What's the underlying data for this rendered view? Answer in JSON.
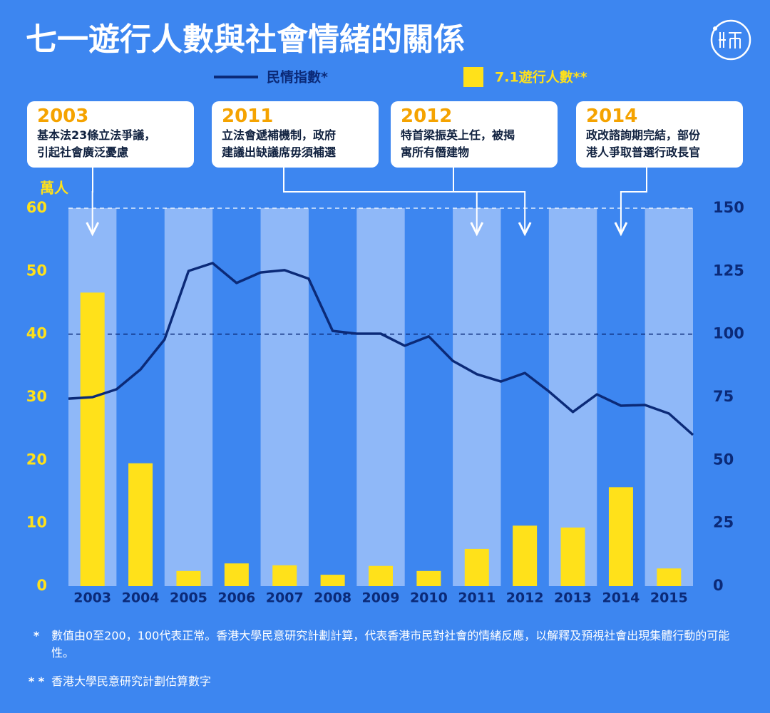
{
  "chart_data": {
    "type": "combo",
    "title": "七一遊行人數與社會情緒的關係",
    "y_label": "萬人",
    "categories": [
      "2003",
      "2004",
      "2005",
      "2006",
      "2007",
      "2008",
      "2009",
      "2010",
      "2011",
      "2012",
      "2013",
      "2014",
      "2015"
    ],
    "series": [
      {
        "name": "民情指數*",
        "type": "line",
        "axis": "y2",
        "color": "#0b2a78",
        "x": [
          2002.5,
          2003,
          2003.5,
          2004,
          2004.5,
          2005,
          2005.5,
          2006,
          2006.5,
          2007,
          2007.5,
          2008,
          2008.5,
          2009,
          2009.5,
          2010,
          2010.5,
          2011,
          2011.5,
          2012,
          2012.5,
          2013,
          2013.5,
          2014,
          2014.5,
          2015,
          2015.5
        ],
        "values": [
          74.4,
          75.0,
          78.1,
          86.0,
          97.9,
          125.1,
          128.2,
          120.3,
          124.5,
          125.4,
          122.0,
          101.3,
          100.2,
          100.2,
          95.4,
          99.1,
          89.4,
          84.1,
          81.2,
          84.6,
          77.3,
          69.1,
          76.1,
          71.6,
          71.9,
          68.5,
          60.0
        ]
      },
      {
        "name": "7.1遊行人數**",
        "type": "bar",
        "color": "#ffe11a",
        "values": [
          46.6,
          19.5,
          2.4,
          3.6,
          3.3,
          1.8,
          3.2,
          2.4,
          5.9,
          9.6,
          9.3,
          15.7,
          2.8
        ]
      }
    ],
    "ylim": [
      0,
      60
    ],
    "yticks": [
      0,
      10,
      20,
      30,
      40,
      50,
      60
    ],
    "y2lim": [
      0,
      150
    ],
    "y2ticks": [
      0,
      25,
      50,
      75,
      100,
      125,
      150
    ],
    "y2_reference": 100,
    "annotations": [
      {
        "year": "2003",
        "lines": [
          "基本法23條立法爭議，",
          "引起社會廣泛憂慮"
        ]
      },
      {
        "year": "2011",
        "lines": [
          "立法會遞補機制，政府",
          "建議出缺議席毋須補選"
        ]
      },
      {
        "year": "2012",
        "lines": [
          "特首梁振英上任，被揭",
          "寓所有僭建物"
        ]
      },
      {
        "year": "2014",
        "lines": [
          "政改諮詢期完結，部份",
          "港人爭取普選行政長官"
        ]
      }
    ],
    "footnotes": [
      {
        "marker": "*",
        "text": "數值由0至200，100代表正常。香港大學民意研究計劃計算，代表香港市民對社會的情緒反應，以解釋及預視社會出現集體行動的可能性。"
      },
      {
        "marker": "* *",
        "text": "香港大學民意研究計劃估算數字"
      }
    ]
  }
}
